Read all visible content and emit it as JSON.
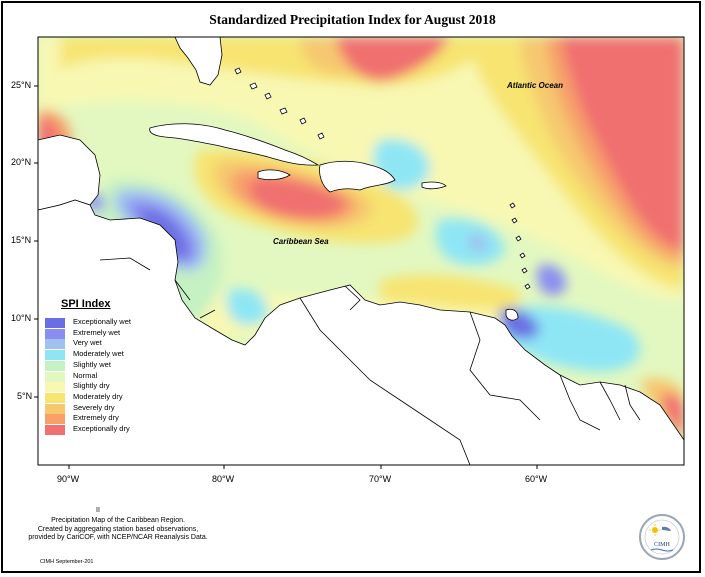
{
  "title": "Standardized Precipitation Index for August 2018",
  "labels": {
    "ocean": "Atlantic Ocean",
    "sea": "Caribbean Sea"
  },
  "lat_ticks": [
    "25°N",
    "20°N",
    "15°N",
    "10°N",
    "5°N"
  ],
  "lon_ticks": [
    "90°W",
    "80°W",
    "70°W",
    "60°W"
  ],
  "legend": {
    "title": "SPI Index",
    "items": [
      {
        "label": "Exceptionally wet",
        "color": "#6a6ee3"
      },
      {
        "label": "Extremely wet",
        "color": "#8b8ef0"
      },
      {
        "label": "Very wet",
        "color": "#9fc1f0"
      },
      {
        "label": "Moderately wet",
        "color": "#8ee6f5"
      },
      {
        "label": "Slightly wet",
        "color": "#c5f1c3"
      },
      {
        "label": "Normal",
        "color": "#e2f8c0"
      },
      {
        "label": "Slightly dry",
        "color": "#f8f8b2"
      },
      {
        "label": "Moderately dry",
        "color": "#f7e471"
      },
      {
        "label": "Severely dry",
        "color": "#f6c870"
      },
      {
        "label": "Extremely dry",
        "color": "#f7a06a"
      },
      {
        "label": "Exceptionally dry",
        "color": "#f06f6f"
      }
    ]
  },
  "mark": "II",
  "caption": [
    "Precipitation Map of the Caribbean Region.",
    "Created by aggregating station based observations,",
    "provided by CariCOF, with NCEP/NCAR Reanalysis Data."
  ],
  "credit": "CIMH September-201",
  "logo": {
    "text": "CIMH"
  }
}
